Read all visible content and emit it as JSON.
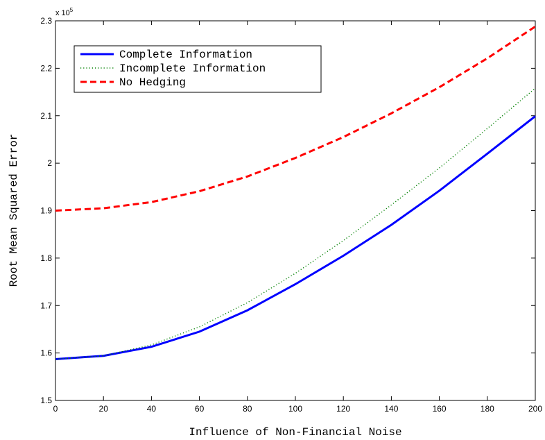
{
  "chart_data": {
    "type": "line",
    "xlabel": "Influence of Non-Financial Noise",
    "ylabel": "Root Mean Squared Error",
    "y_multiplier_label": "x 10",
    "y_multiplier_exp": "5",
    "xlim": [
      0,
      200
    ],
    "ylim": [
      1.5,
      2.3
    ],
    "x_ticks": [
      0,
      20,
      40,
      60,
      80,
      100,
      120,
      140,
      160,
      180,
      200
    ],
    "y_ticks": [
      1.5,
      1.6,
      1.7,
      1.8,
      1.9,
      2.0,
      2.1,
      2.2,
      2.3
    ],
    "y_tick_labels": [
      "1.5",
      "1.6",
      "1.7",
      "1.8",
      "1.9",
      "2",
      "2.1",
      "2.2",
      "2.3"
    ],
    "grid": false,
    "legend_position": "top-left",
    "x": [
      0,
      20,
      40,
      60,
      80,
      100,
      120,
      140,
      160,
      180,
      200
    ],
    "series": [
      {
        "name": "Complete Information",
        "color": "#0000ff",
        "style": "solid",
        "values": [
          1.587,
          1.594,
          1.613,
          1.645,
          1.69,
          1.745,
          1.805,
          1.87,
          1.942,
          2.02,
          2.099
        ]
      },
      {
        "name": "Incomplete Information",
        "color": "#008000",
        "style": "dotted",
        "values": [
          1.587,
          1.594,
          1.617,
          1.655,
          1.706,
          1.768,
          1.837,
          1.912,
          1.99,
          2.073,
          2.158
        ]
      },
      {
        "name": "No Hedging",
        "color": "#ff0000",
        "style": "dashed",
        "values": [
          1.9,
          1.905,
          1.918,
          1.941,
          1.972,
          2.011,
          2.055,
          2.105,
          2.16,
          2.221,
          2.288
        ]
      }
    ]
  }
}
